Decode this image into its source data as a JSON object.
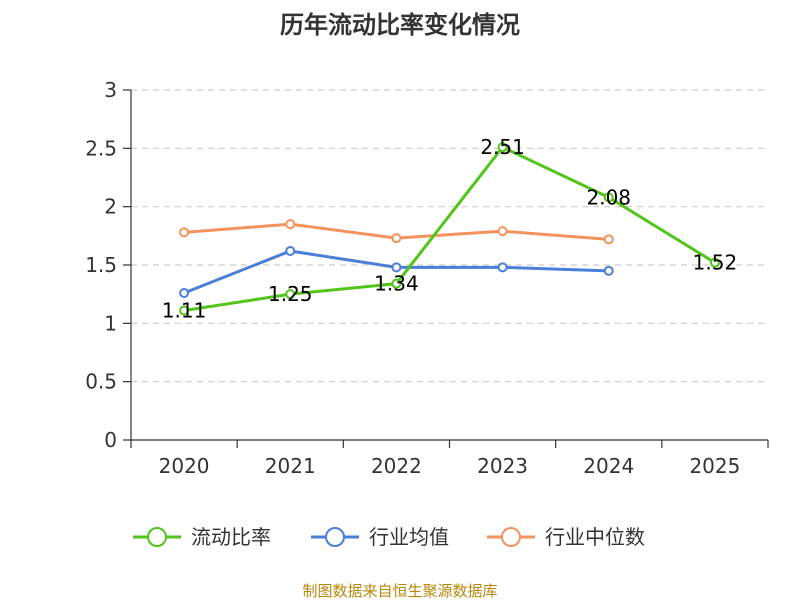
{
  "chart_data": {
    "type": "line",
    "title": "历年流动比率变化情况",
    "categories": [
      "2020",
      "2021",
      "2022",
      "2023",
      "2024",
      "2025"
    ],
    "ylim": [
      0,
      3
    ],
    "yticks": [
      "0",
      "0.5",
      "1",
      "1.5",
      "2",
      "2.5",
      "3"
    ],
    "ytick_values": [
      0,
      0.5,
      1,
      1.5,
      2,
      2.5,
      3
    ],
    "grid": true,
    "legend_position": "bottom",
    "series": [
      {
        "name": "流动比率",
        "color": "#52c41a",
        "values": [
          1.11,
          1.25,
          1.34,
          2.51,
          2.08,
          1.52
        ],
        "labels": [
          "1.11",
          "1.25",
          "1.34",
          "2.51",
          "2.08",
          "1.52"
        ]
      },
      {
        "name": "行业均值",
        "color": "#4a7fd9",
        "values": [
          1.26,
          1.62,
          1.48,
          1.48,
          1.45,
          null
        ]
      },
      {
        "name": "行业中位数",
        "color": "#f5935e",
        "values": [
          1.78,
          1.85,
          1.73,
          1.79,
          1.72,
          null
        ]
      }
    ],
    "source": "制图数据来自恒生聚源数据库"
  }
}
